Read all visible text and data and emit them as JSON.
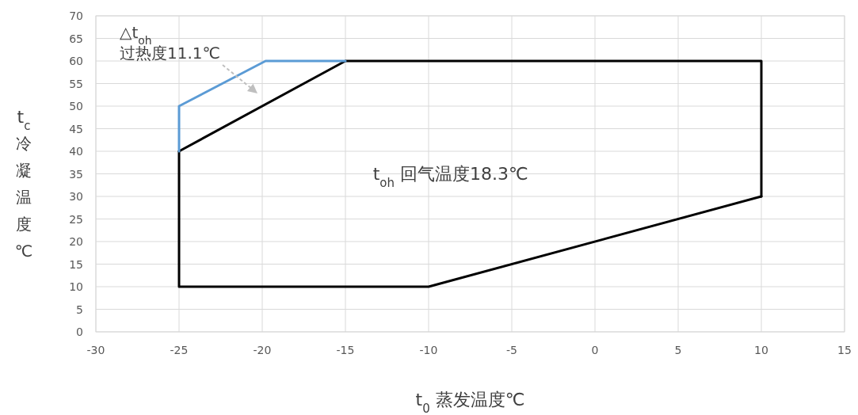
{
  "chart_data": {
    "type": "line",
    "xlabel": "t$_{0}$ 蒸发温度℃",
    "ylabel": "t$_{c}$ 冷凝温度℃",
    "series": [
      {
        "color": "#000000",
        "x": [
          -25,
          -15,
          10,
          10
        ],
        "values": [
          40,
          60,
          60,
          30
        ]
      },
      {
        "color": "#000000",
        "x": [
          -25,
          -25,
          -10,
          10
        ],
        "values": [
          40,
          10,
          10,
          30
        ]
      },
      {
        "color": "#5b9bd5",
        "x": [
          -25,
          -25,
          -19.8,
          -15
        ],
        "values": [
          40,
          50,
          60,
          60
        ]
      }
    ],
    "xlim": [
      -30,
      15
    ],
    "ylim": [
      0,
      70
    ],
    "xticks": [
      -30,
      -25,
      -20,
      -15,
      -10,
      -5,
      0,
      5,
      10,
      15
    ],
    "yticks": [
      0,
      5,
      10,
      15,
      20,
      25,
      30,
      35,
      40,
      45,
      50,
      55,
      60,
      65,
      70
    ],
    "grid": true,
    "annotations": [
      "△t$_{oh}$\n过热度11.1℃",
      "t$_{oh}$ 回气温度18.3℃"
    ]
  }
}
